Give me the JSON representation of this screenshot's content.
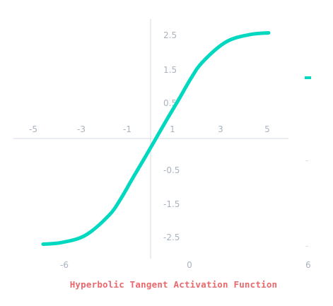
{
  "chart_data": {
    "type": "line",
    "title": "Hyperbolic Tangent Activation Function",
    "color": "#00d8c0",
    "top_axis_x_ticks": [
      "-5",
      "-3",
      "-1",
      "1",
      "3",
      "5"
    ],
    "y_ticks": [
      "2.5",
      "1.5",
      "0.5",
      "-0.5",
      "-1.5",
      "-2.5"
    ],
    "bottom_x_ticks": [
      "-6",
      "0",
      "6"
    ],
    "x_range": [
      -6,
      6
    ],
    "y_range": [
      -3,
      3
    ],
    "series": [
      {
        "x": [
          -4.8,
          -4.0,
          -3.0,
          -2.0,
          -1.5,
          -1.0,
          -0.5,
          0.0,
          0.5,
          1.0,
          1.5,
          2.0,
          3.0,
          4.0,
          4.8
        ],
        "y": [
          -2.5,
          -2.46,
          -2.29,
          -1.82,
          -1.43,
          -0.95,
          -0.48,
          0.0,
          0.48,
          0.95,
          1.43,
          1.82,
          2.29,
          2.46,
          2.5
        ]
      }
    ]
  }
}
